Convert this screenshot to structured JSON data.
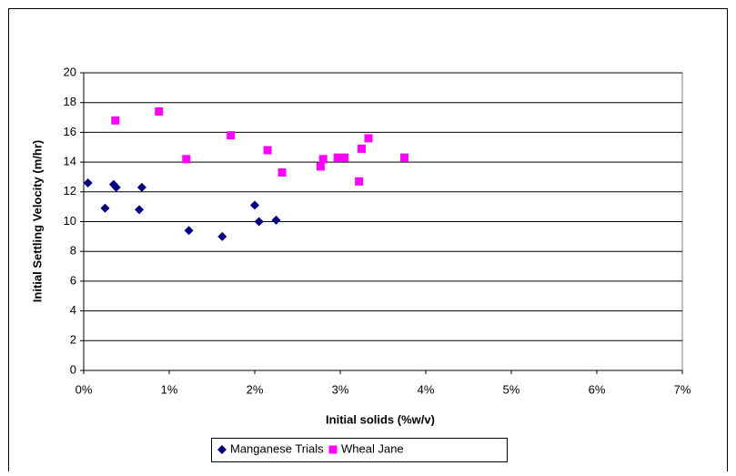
{
  "chart_data": {
    "type": "scatter",
    "xlabel": "Initial solids (%w/v)",
    "ylabel": "Initial Settling Velocity (m/hr)",
    "xlim": [
      0,
      7
    ],
    "xticks": [
      {
        "value": 0,
        "label": "0%"
      },
      {
        "value": 1,
        "label": "1%"
      },
      {
        "value": 2,
        "label": "2%"
      },
      {
        "value": 3,
        "label": "3%"
      },
      {
        "value": 4,
        "label": "4%"
      },
      {
        "value": 5,
        "label": "5%"
      },
      {
        "value": 6,
        "label": "6%"
      },
      {
        "value": 7,
        "label": "7%"
      }
    ],
    "ylim": [
      0,
      20
    ],
    "yticks": [
      0,
      2,
      4,
      6,
      8,
      10,
      12,
      14,
      16,
      18,
      20
    ],
    "grid": true,
    "legend": "bottom",
    "series": [
      {
        "name": "Manganese Trials",
        "color": "#000080",
        "marker": "diamond",
        "x": [
          0.05,
          0.25,
          0.35,
          0.38,
          0.65,
          0.68,
          1.23,
          1.62,
          2.0,
          2.05,
          2.25
        ],
        "values": [
          12.6,
          10.9,
          12.5,
          12.3,
          10.8,
          12.3,
          9.4,
          9.0,
          11.1,
          10.0,
          10.1
        ]
      },
      {
        "name": "Wheal Jane",
        "color": "#ff00ff",
        "marker": "square",
        "x": [
          0.37,
          0.88,
          1.2,
          1.72,
          2.15,
          2.32,
          2.77,
          2.8,
          2.97,
          3.05,
          3.22,
          3.25,
          3.33,
          3.75
        ],
        "values": [
          16.8,
          17.4,
          14.2,
          15.8,
          14.8,
          13.3,
          13.7,
          14.2,
          14.3,
          14.3,
          12.7,
          14.9,
          15.6,
          14.3
        ]
      }
    ]
  }
}
